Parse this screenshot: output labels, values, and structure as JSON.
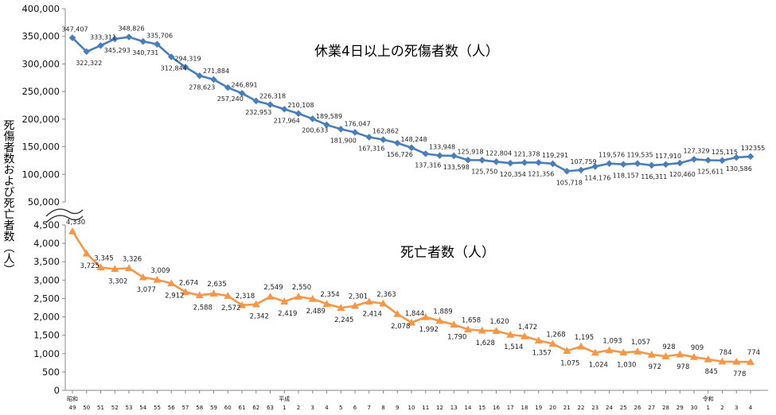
{
  "chart_data": {
    "type": "line",
    "ylabel": "死傷者数および死亡者数（人）",
    "x": [
      "49",
      "50",
      "51",
      "52",
      "53",
      "54",
      "55",
      "56",
      "57",
      "58",
      "59",
      "60",
      "61",
      "62",
      "63",
      "1",
      "2",
      "3",
      "4",
      "5",
      "6",
      "7",
      "8",
      "9",
      "10",
      "11",
      "12",
      "13",
      "14",
      "15",
      "16",
      "17",
      "18",
      "19",
      "20",
      "21",
      "22",
      "23",
      "24",
      "25",
      "26",
      "27",
      "28",
      "29",
      "30",
      "1",
      "2",
      "3",
      "4"
    ],
    "era_labels": [
      {
        "label": "昭和",
        "at_index": 0
      },
      {
        "label": "平成",
        "at_index": 15
      },
      {
        "label": "令和",
        "at_index": 45
      }
    ],
    "upper_panel": {
      "ylim": [
        50000,
        400000
      ],
      "yticks": [
        "50,000",
        "100,000",
        "150,000",
        "200,000",
        "250,000",
        "300,000",
        "350,000",
        "400,000"
      ],
      "series": [
        {
          "name": "休業4日以上の死傷者数（人）",
          "color": "#4a7ebb",
          "marker": "diamond",
          "values": [
            347407,
            322322,
            333311,
            345293,
            348826,
            340731,
            335706,
            312844,
            294319,
            278623,
            271884,
            257240,
            246891,
            232953,
            226318,
            217964,
            210108,
            200633,
            189589,
            181900,
            176047,
            167316,
            162862,
            156726,
            148248,
            137316,
            133948,
            133598,
            125918,
            125750,
            122804,
            120354,
            121378,
            121356,
            119291,
            105718,
            107759,
            114176,
            119576,
            118157,
            119535,
            116311,
            117910,
            120460,
            127329,
            125611,
            125115,
            130586,
            132355
          ],
          "labels": [
            "347,407",
            "322,322",
            "333,311",
            "345,293",
            "348,826",
            "340,731",
            "335,706",
            "312,844",
            "294,319",
            "278,623",
            "271,884",
            "257,240",
            "246,891",
            "232,953",
            "226,318",
            "217,964",
            "210,108",
            "200,633",
            "189,589",
            "181,900",
            "176,047",
            "167,316",
            "162,862",
            "156,726",
            "148,248",
            "137,316",
            "133,948",
            "133,598",
            "125,918",
            "125,750",
            "122,804",
            "120,354",
            "121,378",
            "121,356",
            "119,291",
            "105,718",
            "107,759",
            "114,176",
            "119,576",
            "118,157",
            "119,535",
            "116,311",
            "117,910",
            "120,460",
            "127,329",
            "125,611",
            "125,115",
            "130,586",
            "132355"
          ]
        }
      ]
    },
    "lower_panel": {
      "ylim": [
        0,
        4500
      ],
      "yticks": [
        "0",
        "500",
        "1,000",
        "1,500",
        "2,000",
        "2,500",
        "3,000",
        "3,500",
        "4,000",
        "4,500"
      ],
      "series": [
        {
          "name": "死亡者数（人）",
          "color": "#f79646",
          "marker": "triangle",
          "values": [
            4330,
            3725,
            3345,
            3302,
            3326,
            3077,
            3009,
            2912,
            2674,
            2588,
            2635,
            2572,
            2318,
            2342,
            2549,
            2419,
            2550,
            2489,
            2354,
            2245,
            2301,
            2414,
            2363,
            2078,
            1844,
            1992,
            1889,
            1790,
            1658,
            1628,
            1620,
            1514,
            1472,
            1357,
            1268,
            1075,
            1195,
            1024,
            1093,
            1030,
            1057,
            972,
            928,
            978,
            909,
            845,
            784,
            778,
            774
          ],
          "labels": [
            "4,330",
            "3,725",
            "3,345",
            "3,302",
            "3,326",
            "3,077",
            "3,009",
            "2,912",
            "2,674",
            "2,588",
            "2,635",
            "2,572",
            "2,318",
            "2,342",
            "2,549",
            "2,419",
            "2,550",
            "2,489",
            "2,354",
            "2,245",
            "2,301",
            "2,414",
            "2,363",
            "2,078",
            "1,844",
            "1,992",
            "1,889",
            "1,790",
            "1,658",
            "1,628",
            "1,620",
            "1,514",
            "1,472",
            "1,357",
            "1,268",
            "1,075",
            "1,195",
            "1,024",
            "1,093",
            "1,030",
            "1,057",
            "972",
            "928",
            "978",
            "909",
            "845",
            "784",
            "778",
            "774"
          ]
        }
      ]
    },
    "grid": false,
    "legend": "none"
  }
}
